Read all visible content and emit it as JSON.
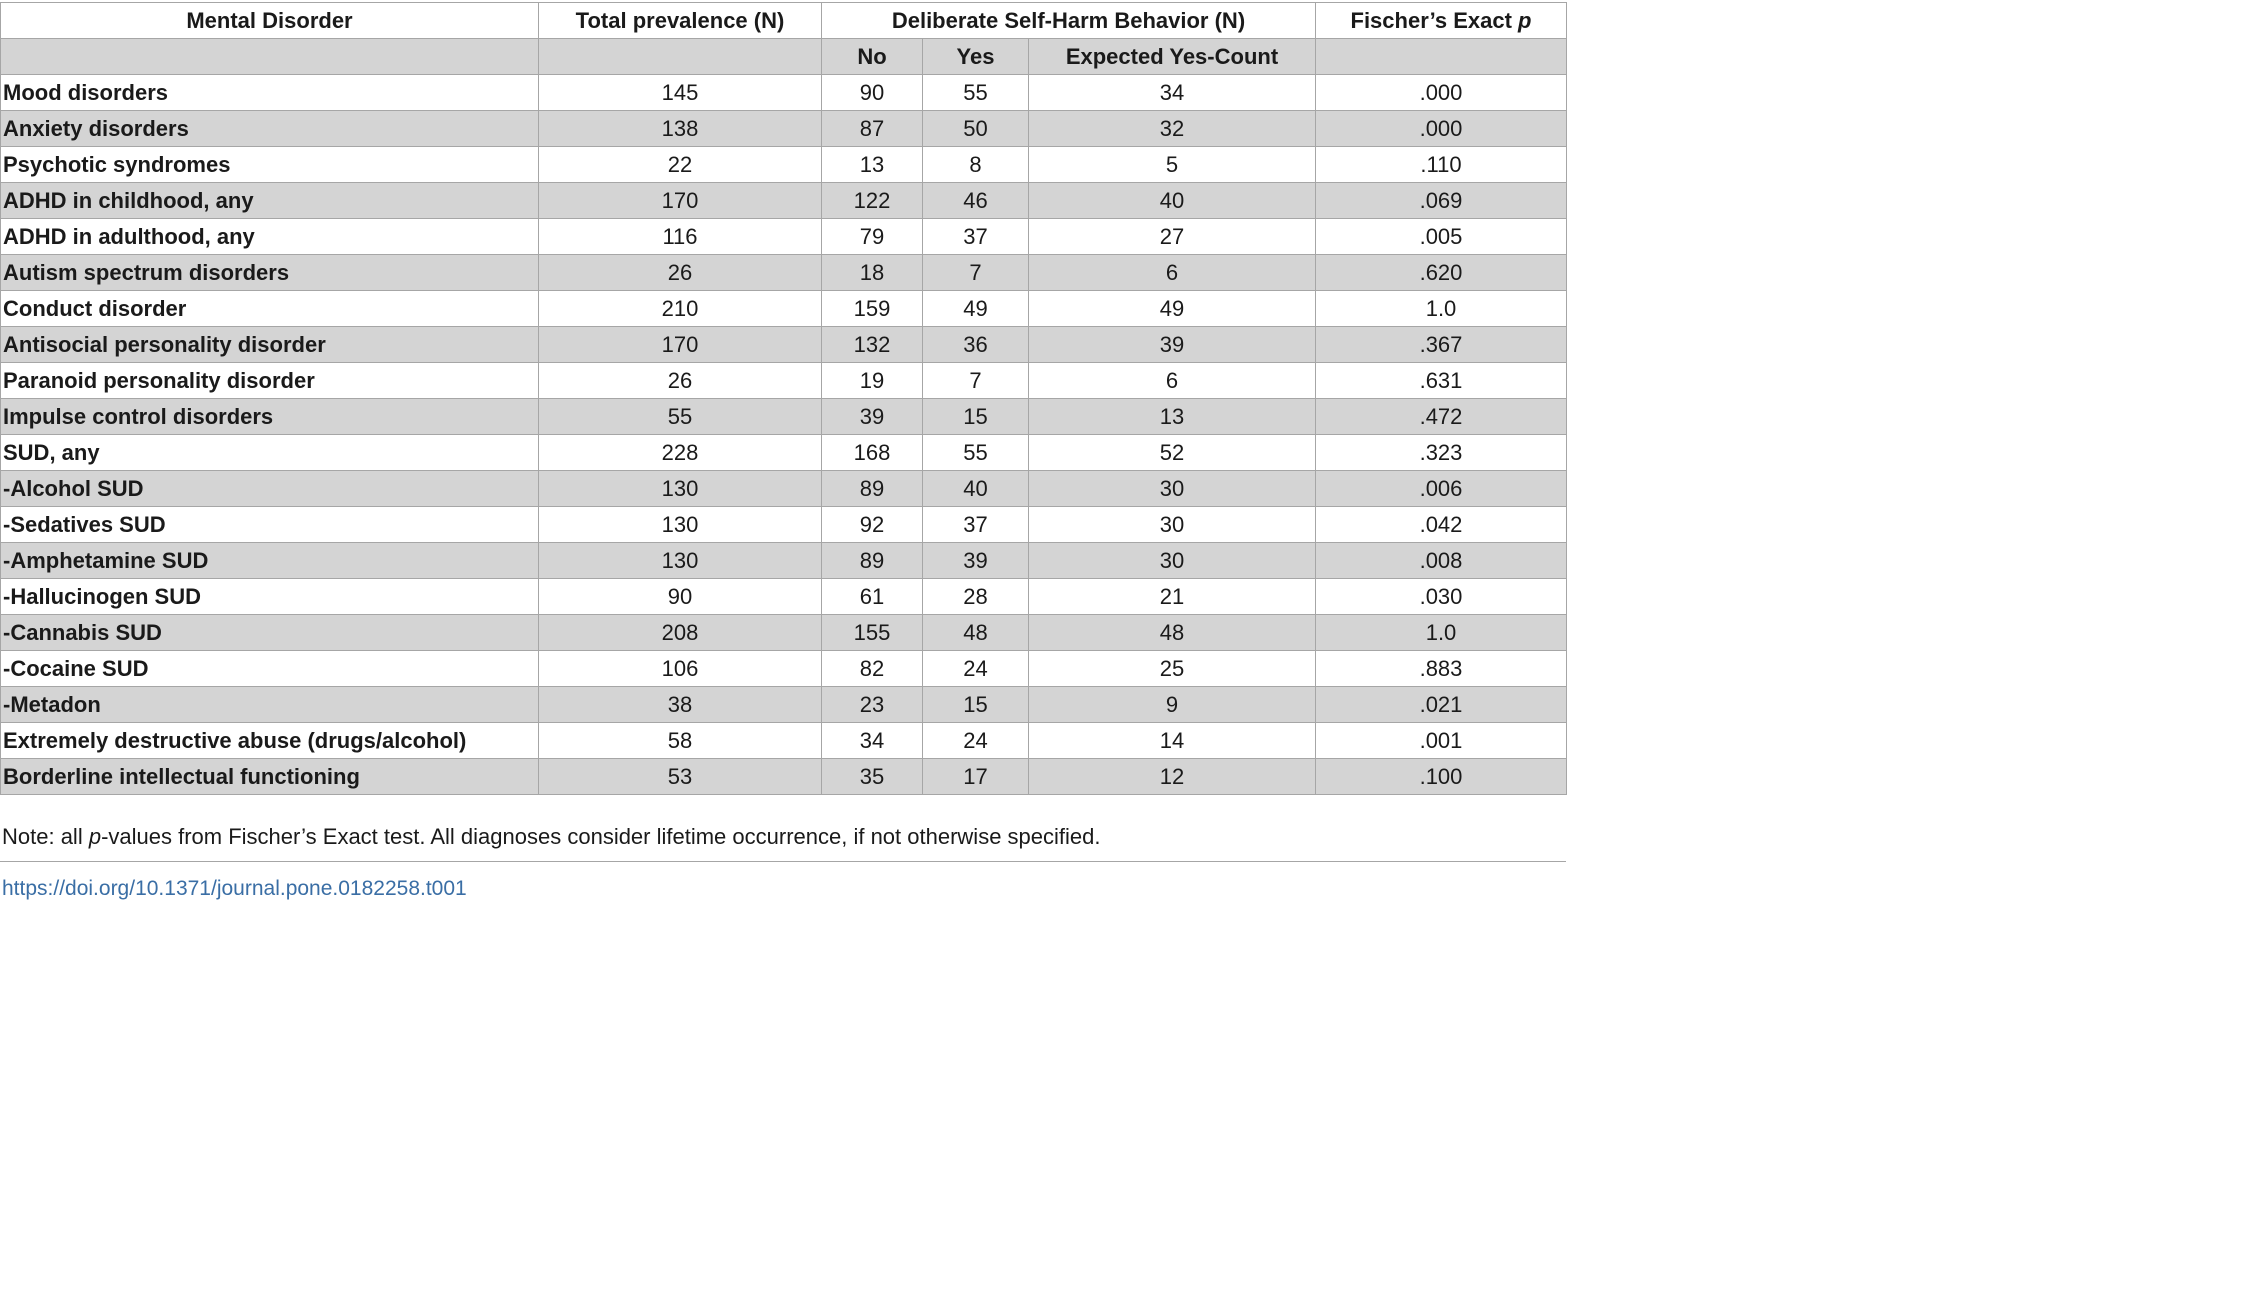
{
  "table": {
    "headers": {
      "mental_disorder": "Mental Disorder",
      "total_prevalence": "Total prevalence (N)",
      "dsh_behavior": "Deliberate Self-Harm Behavior (N)",
      "fischer_prefix": "Fischer’s Exact ",
      "fischer_p": "p",
      "no": "No",
      "yes": "Yes",
      "expected_yes": "Expected Yes-Count"
    },
    "rows": [
      {
        "label": "Mood disorders",
        "total": "145",
        "no": "90",
        "yes": "55",
        "expected": "34",
        "p": ".000"
      },
      {
        "label": "Anxiety disorders",
        "total": "138",
        "no": "87",
        "yes": "50",
        "expected": "32",
        "p": ".000"
      },
      {
        "label": "Psychotic syndromes",
        "total": "22",
        "no": "13",
        "yes": "8",
        "expected": "5",
        "p": ".110"
      },
      {
        "label": "ADHD in childhood, any",
        "total": "170",
        "no": "122",
        "yes": "46",
        "expected": "40",
        "p": ".069"
      },
      {
        "label": "ADHD in adulthood, any",
        "total": "116",
        "no": "79",
        "yes": "37",
        "expected": "27",
        "p": ".005"
      },
      {
        "label": "Autism spectrum disorders",
        "total": "26",
        "no": "18",
        "yes": "7",
        "expected": "6",
        "p": ".620"
      },
      {
        "label": "Conduct disorder",
        "total": "210",
        "no": "159",
        "yes": "49",
        "expected": "49",
        "p": "1.0"
      },
      {
        "label": "Antisocial personality disorder",
        "total": "170",
        "no": "132",
        "yes": "36",
        "expected": "39",
        "p": ".367"
      },
      {
        "label": "Paranoid personality disorder",
        "total": "26",
        "no": "19",
        "yes": "7",
        "expected": "6",
        "p": ".631"
      },
      {
        "label": "Impulse control disorders",
        "total": "55",
        "no": "39",
        "yes": "15",
        "expected": "13",
        "p": ".472"
      },
      {
        "label": "SUD, any",
        "total": "228",
        "no": "168",
        "yes": "55",
        "expected": "52",
        "p": ".323"
      },
      {
        "label": "-Alcohol SUD",
        "total": "130",
        "no": "89",
        "yes": "40",
        "expected": "30",
        "p": ".006"
      },
      {
        "label": "-Sedatives SUD",
        "total": "130",
        "no": "92",
        "yes": "37",
        "expected": "30",
        "p": ".042"
      },
      {
        "label": "-Amphetamine SUD",
        "total": "130",
        "no": "89",
        "yes": "39",
        "expected": "30",
        "p": ".008"
      },
      {
        "label": "-Hallucinogen SUD",
        "total": "90",
        "no": "61",
        "yes": "28",
        "expected": "21",
        "p": ".030"
      },
      {
        "label": "-Cannabis SUD",
        "total": "208",
        "no": "155",
        "yes": "48",
        "expected": "48",
        "p": "1.0"
      },
      {
        "label": "-Cocaine SUD",
        "total": "106",
        "no": "82",
        "yes": "24",
        "expected": "25",
        "p": ".883"
      },
      {
        "label": "-Metadon",
        "total": "38",
        "no": "23",
        "yes": "15",
        "expected": "9",
        "p": ".021"
      },
      {
        "label": "Extremely destructive abuse (drugs/alcohol)",
        "total": "58",
        "no": "34",
        "yes": "24",
        "expected": "14",
        "p": ".001"
      },
      {
        "label": "Borderline intellectual functioning",
        "total": "53",
        "no": "35",
        "yes": "17",
        "expected": "12",
        "p": ".100"
      }
    ]
  },
  "note": {
    "prefix": "Note: all ",
    "italic": "p",
    "suffix": "-values from Fischer’s Exact test. All diagnoses consider lifetime occurrence, if not otherwise specified."
  },
  "doi": "https://doi.org/10.1371/journal.pone.0182258.t001",
  "colors": {
    "shade": "#d4d4d4",
    "border": "#a6a6a6",
    "link": "#3a6ea5"
  }
}
